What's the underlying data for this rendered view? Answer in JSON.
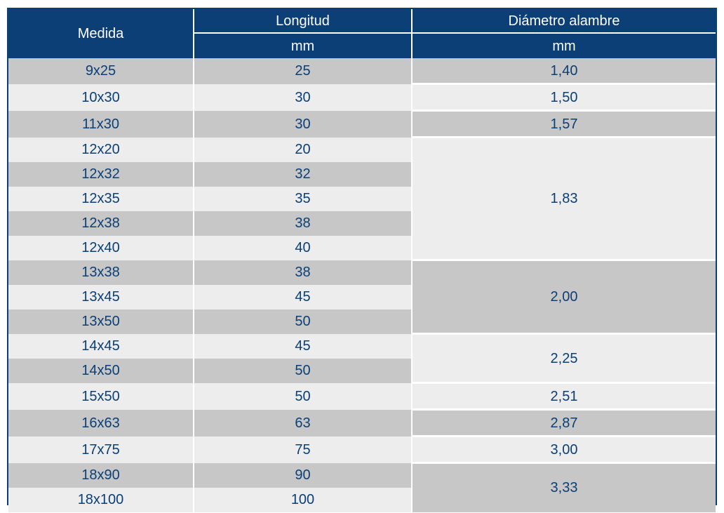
{
  "header": {
    "medida": "Medida",
    "longitud": "Longitud",
    "diametro": "Diámetro alambre",
    "unit_longitud": "mm",
    "unit_diametro": "mm"
  },
  "rows": [
    {
      "medida": "9x25",
      "longitud": "25"
    },
    {
      "medida": "10x30",
      "longitud": "30"
    },
    {
      "medida": "11x30",
      "longitud": "30"
    },
    {
      "medida": "12x20",
      "longitud": "20"
    },
    {
      "medida": "12x32",
      "longitud": "32"
    },
    {
      "medida": "12x35",
      "longitud": "35"
    },
    {
      "medida": "12x38",
      "longitud": "38"
    },
    {
      "medida": "12x40",
      "longitud": "40"
    },
    {
      "medida": "13x38",
      "longitud": "38"
    },
    {
      "medida": "13x45",
      "longitud": "45"
    },
    {
      "medida": "13x50",
      "longitud": "50"
    },
    {
      "medida": "14x45",
      "longitud": "45"
    },
    {
      "medida": "14x50",
      "longitud": "50"
    },
    {
      "medida": "15x50",
      "longitud": "50"
    },
    {
      "medida": "16x63",
      "longitud": "63"
    },
    {
      "medida": "17x75",
      "longitud": "75"
    },
    {
      "medida": "18x90",
      "longitud": "90"
    },
    {
      "medida": "18x100",
      "longitud": "100"
    }
  ],
  "diametro_groups": [
    {
      "value": "1,40",
      "rows": 1
    },
    {
      "value": "1,50",
      "rows": 1
    },
    {
      "value": "1,57",
      "rows": 1
    },
    {
      "value": "1,83",
      "rows": 5
    },
    {
      "value": "2,00",
      "rows": 3
    },
    {
      "value": "2,25",
      "rows": 2
    },
    {
      "value": "2,51",
      "rows": 1
    },
    {
      "value": "2,87",
      "rows": 1
    },
    {
      "value": "3,00",
      "rows": 1
    },
    {
      "value": "3,33",
      "rows": 2
    }
  ],
  "colors": {
    "header_bg": "#0b3f75",
    "text": "#0b3f75",
    "row_dark": "#c7c7c7",
    "row_light": "#ededed"
  }
}
